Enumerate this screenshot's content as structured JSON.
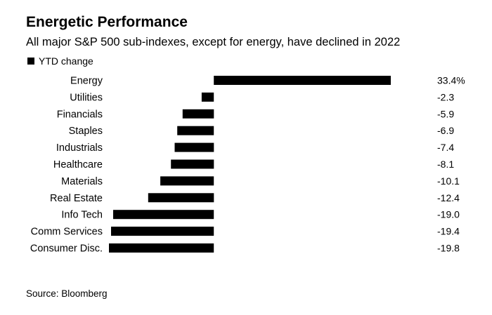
{
  "title": "Energetic Performance",
  "subtitle": "All major S&P 500 sub-indexes, except for energy, have declined in 2022",
  "legend": {
    "label": "YTD change"
  },
  "source": "Source: Bloomberg",
  "chart_data": {
    "type": "bar",
    "orientation": "horizontal",
    "title": "Energetic Performance",
    "subtitle": "All major S&P 500 sub-indexes, except for energy, have declined in 2022",
    "series": [
      {
        "name": "YTD change",
        "values": [
          33.4,
          -2.3,
          -5.9,
          -6.9,
          -7.4,
          -8.1,
          -10.1,
          -12.4,
          -19.0,
          -19.4,
          -19.8
        ]
      }
    ],
    "categories": [
      "Energy",
      "Utilities",
      "Financials",
      "Staples",
      "Industrials",
      "Healthcare",
      "Materials",
      "Real Estate",
      "Info Tech",
      "Comm Services",
      "Consumer Disc."
    ],
    "value_labels": [
      "33.4%",
      "-2.3",
      "-5.9",
      "-6.9",
      "-7.4",
      "-8.1",
      "-10.1",
      "-12.4",
      "-19.0",
      "-19.4",
      "-19.8"
    ],
    "bar_color": "#000000",
    "xlim": [
      -19.8,
      33.4
    ],
    "grid": false,
    "legend_position": "top-left"
  }
}
